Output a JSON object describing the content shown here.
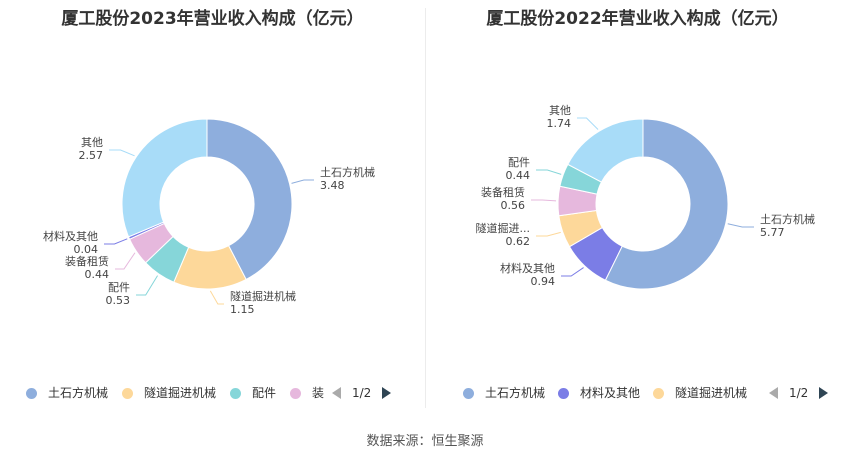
{
  "source": "数据来源：恒生聚源",
  "chart_data": [
    {
      "type": "pie",
      "title": "厦工股份2023年营业收入构成（亿元）",
      "slices": [
        {
          "name": "土石方机械",
          "value": 3.48,
          "color": "#8eaedd"
        },
        {
          "name": "隧道掘进机械",
          "value": 1.15,
          "color": "#fdd89a"
        },
        {
          "name": "配件",
          "value": 0.53,
          "color": "#86d6d9"
        },
        {
          "name": "装备租赁",
          "value": 0.44,
          "color": "#e6b8dd"
        },
        {
          "name": "材料及其他",
          "value": 0.04,
          "color": "#7b7de6"
        },
        {
          "name": "其他",
          "value": 2.57,
          "color": "#a8dcf8"
        }
      ],
      "label_names": [
        "土石方机械",
        "隧道掘进机械",
        "配件",
        "装备租赁",
        "材料及其他",
        "其他"
      ],
      "label_values": [
        "3.48",
        "1.15",
        "0.53",
        "0.44",
        "0.04",
        "2.57"
      ],
      "legend": {
        "items": [
          {
            "label": "土石方机械",
            "color": "#8eaedd"
          },
          {
            "label": "隧道掘进机械",
            "color": "#fdd89a"
          },
          {
            "label": "配件",
            "color": "#86d6d9"
          },
          {
            "label": "装",
            "color": "#e6b8dd"
          }
        ],
        "page": "1/2"
      }
    },
    {
      "type": "pie",
      "title": "厦工股份2022年营业收入构成（亿元）",
      "slices": [
        {
          "name": "土石方机械",
          "value": 5.77,
          "color": "#8eaedd"
        },
        {
          "name": "材料及其他",
          "value": 0.94,
          "color": "#7b7de6"
        },
        {
          "name": "隧道掘进机械",
          "value": 0.62,
          "color": "#fdd89a"
        },
        {
          "name": "装备租赁",
          "value": 0.56,
          "color": "#e6b8dd"
        },
        {
          "name": "配件",
          "value": 0.44,
          "color": "#86d6d9"
        },
        {
          "name": "其他",
          "value": 1.74,
          "color": "#a8dcf8"
        }
      ],
      "label_names": [
        "土石方机械",
        "材料及其他",
        "隧道掘进...",
        "装备租赁",
        "配件",
        "其他"
      ],
      "label_values": [
        "5.77",
        "0.94",
        "0.62",
        "0.56",
        "0.44",
        "1.74"
      ],
      "legend": {
        "items": [
          {
            "label": "土石方机械",
            "color": "#8eaedd"
          },
          {
            "label": "材料及其他",
            "color": "#7b7de6"
          },
          {
            "label": "隧道掘进机械",
            "color": "#fdd89a"
          }
        ],
        "page": "1/2"
      }
    }
  ]
}
